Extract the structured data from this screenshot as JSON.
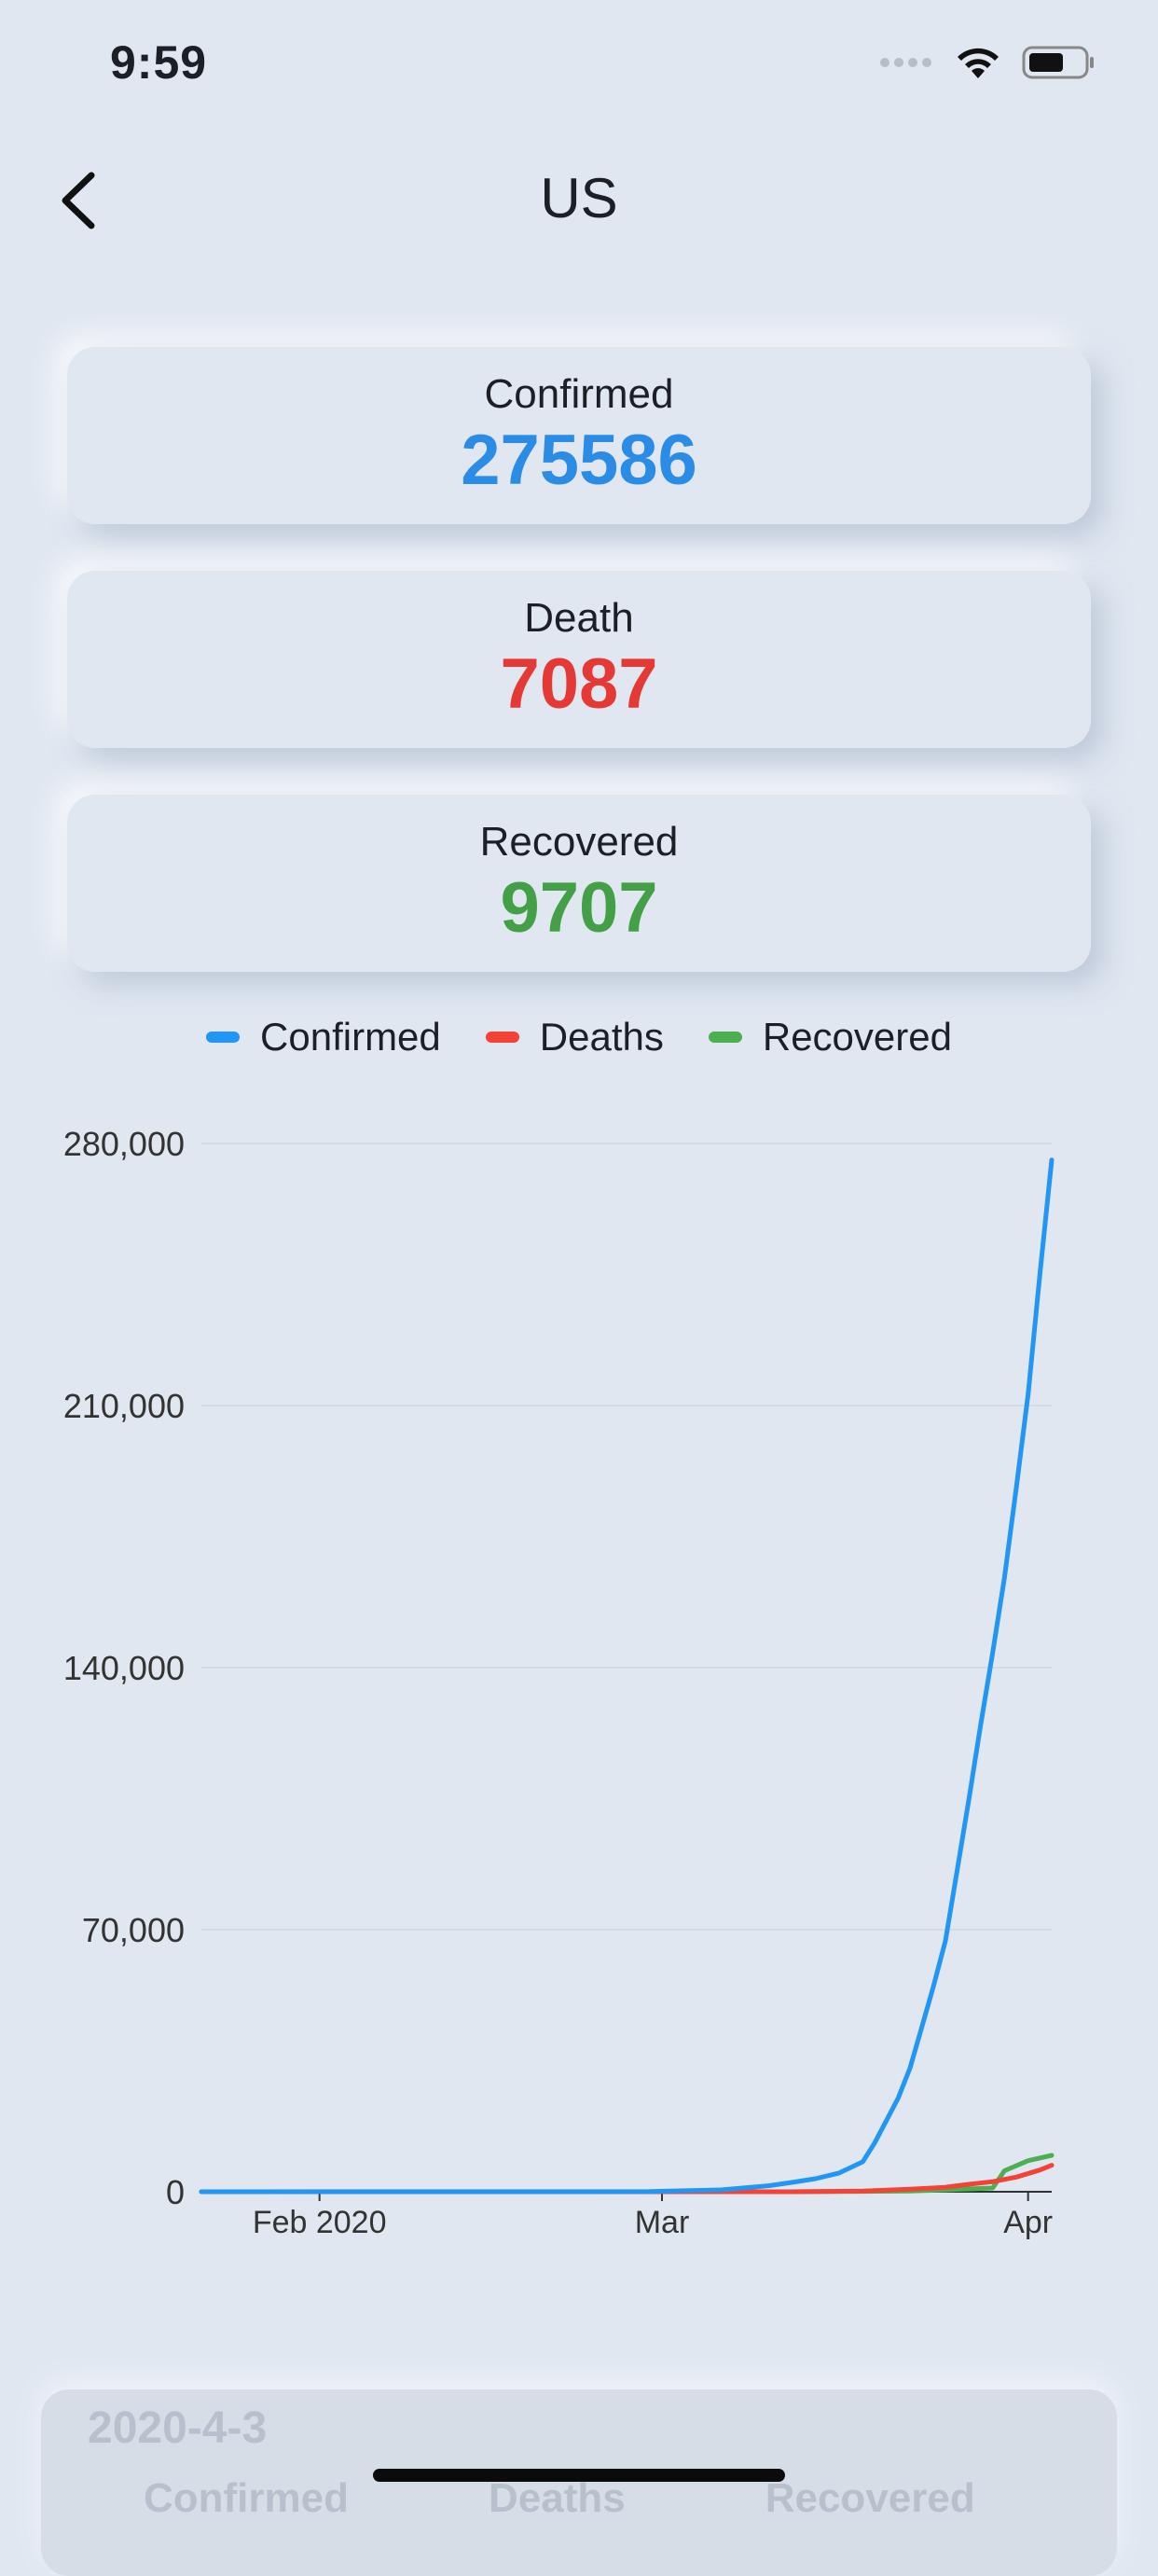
{
  "status_bar": {
    "time": "9:59"
  },
  "nav": {
    "title": "US"
  },
  "stats": {
    "confirmed": {
      "label": "Confirmed",
      "value": "275586",
      "color": "#2b8ce6"
    },
    "death": {
      "label": "Death",
      "value": "7087",
      "color": "#e53935"
    },
    "recovered": {
      "label": "Recovered",
      "value": "9707",
      "color": "#43a047"
    }
  },
  "chart_data": {
    "type": "line",
    "legend": [
      {
        "name": "Confirmed",
        "color": "#2196f3"
      },
      {
        "name": "Deaths",
        "color": "#f44336"
      },
      {
        "name": "Recovered",
        "color": "#4caf50"
      }
    ],
    "ylim": [
      0,
      280000
    ],
    "yticks": [
      0,
      70000,
      140000,
      210000,
      280000
    ],
    "ytick_labels": [
      "0",
      "70,000",
      "140,000",
      "210,000",
      "280,000"
    ],
    "xlim": [
      0,
      72
    ],
    "xticks": [
      {
        "day": 10,
        "label": "Feb 2020"
      },
      {
        "day": 39,
        "label": "Mar"
      },
      {
        "day": 70,
        "label": "Apr"
      }
    ],
    "series": [
      {
        "name": "Confirmed",
        "color": "#2196f3",
        "points": [
          [
            0,
            0
          ],
          [
            38,
            60
          ],
          [
            44,
            500
          ],
          [
            48,
            1600
          ],
          [
            50,
            2500
          ],
          [
            52,
            3500
          ],
          [
            54,
            5000
          ],
          [
            55,
            6500
          ],
          [
            56,
            8000
          ],
          [
            57,
            13000
          ],
          [
            58,
            19000
          ],
          [
            59,
            25000
          ],
          [
            60,
            33000
          ],
          [
            61,
            44000
          ],
          [
            62,
            55000
          ],
          [
            63,
            67000
          ],
          [
            64,
            86000
          ],
          [
            65,
            105000
          ],
          [
            66,
            125000
          ],
          [
            67,
            144000
          ],
          [
            68,
            164000
          ],
          [
            69,
            188000
          ],
          [
            70,
            213000
          ],
          [
            71,
            245000
          ],
          [
            72,
            275586
          ]
        ]
      },
      {
        "name": "Deaths",
        "color": "#f44336",
        "points": [
          [
            0,
            0
          ],
          [
            50,
            0
          ],
          [
            56,
            200
          ],
          [
            60,
            700
          ],
          [
            63,
            1200
          ],
          [
            65,
            2000
          ],
          [
            67,
            2700
          ],
          [
            69,
            3900
          ],
          [
            71,
            5800
          ],
          [
            72,
            7087
          ]
        ]
      },
      {
        "name": "Recovered",
        "color": "#4caf50",
        "points": [
          [
            0,
            0
          ],
          [
            50,
            0
          ],
          [
            56,
            100
          ],
          [
            60,
            200
          ],
          [
            63,
            500
          ],
          [
            67,
            1000
          ],
          [
            68,
            5600
          ],
          [
            70,
            8300
          ],
          [
            72,
            9707
          ]
        ]
      }
    ]
  },
  "history": {
    "date": "2020-4-3",
    "columns": [
      "Confirmed",
      "Deaths",
      "Recovered"
    ]
  }
}
